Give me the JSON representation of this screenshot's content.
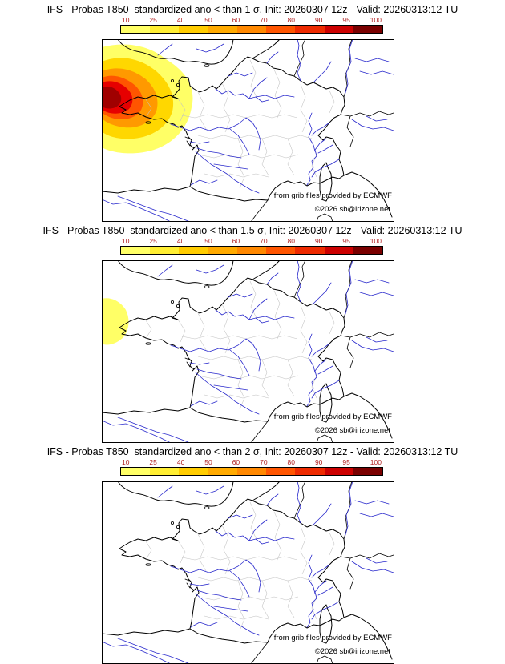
{
  "page": {
    "background": "#ffffff"
  },
  "panels": [
    {
      "id": 1,
      "threshold_sigma": "1",
      "title": "IFS - Probas T850  standardized ano < than 1 σ, Init: 20260307 12z - Valid: 20260313:12 TU",
      "credit_ecmwf": "from grib files provided by ECMWF",
      "credit_copyright": "©2026 sb@irizone.net"
    },
    {
      "id": 2,
      "threshold_sigma": "1.5",
      "title": "IFS - Probas T850  standardized ano < than 1.5 σ, Init: 20260307 12z - Valid: 20260313:12 TU",
      "credit_ecmwf": "from grib files provided by ECMWF",
      "credit_copyright": "©2026 sb@irizone.net"
    },
    {
      "id": 3,
      "threshold_sigma": "2",
      "title": "IFS - Probas T850  standardized ano < than 2 σ, Init: 20260307 12z - Valid: 20260313:12 TU",
      "credit_ecmwf": "from grib files provided by ECMWF",
      "credit_copyright": "©2026 sb@irizone.net"
    }
  ],
  "colorbar": {
    "ticks": [
      "10",
      "25",
      "40",
      "50",
      "60",
      "70",
      "80",
      "90",
      "95",
      "100"
    ],
    "segment_colors": [
      "#ffff66",
      "#ffee33",
      "#ffcc00",
      "#ffaa00",
      "#ff8800",
      "#ff5500",
      "#ee2a00",
      "#cc0000",
      "#7a0000"
    ],
    "tick_color": "#b22222",
    "border_color": "#000000"
  },
  "map": {
    "coast_color": "#000000",
    "river_color": "#2929cc",
    "boundary_color": "#c2c2c2",
    "panel1_levels": [
      "#ffff66",
      "#ffd700",
      "#ff9900",
      "#ff5500",
      "#e60000",
      "#a00000"
    ],
    "panel2_levels": [
      "#ffff66"
    ],
    "panel3_levels": []
  }
}
